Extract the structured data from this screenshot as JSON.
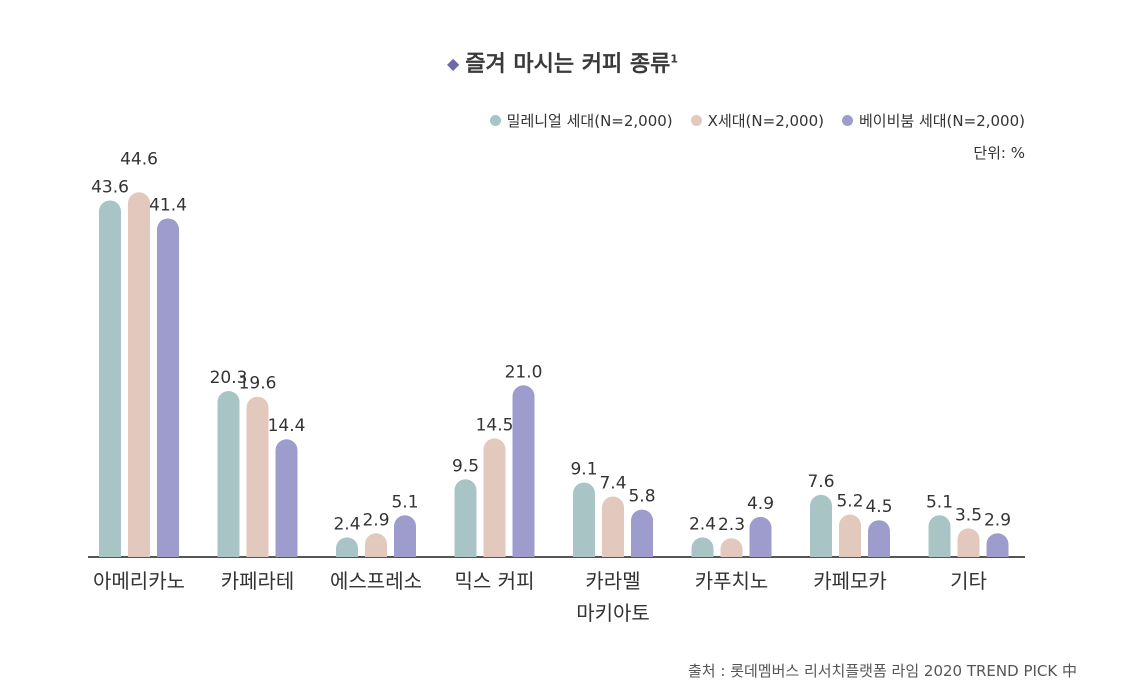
{
  "title": "즐겨 마시는 커피 종류",
  "title_note": "1",
  "unit": "단위: %",
  "source": "출처 : 롯데멤버스 리서치플랫폼 라임 2020 TREND PICK 中",
  "colors": {
    "millennial": "#a9c4c4",
    "genx": "#e3c8bd",
    "boomer": "#9d9ccc",
    "axis": "#555555"
  },
  "chart_data": {
    "type": "bar",
    "title": "즐겨 마시는 커피 종류",
    "categories": [
      "아메리카노",
      "카페라테",
      "에스프레소",
      "믹스 커피",
      "카라멜\n마키아토",
      "카푸치노",
      "카페모카",
      "기타"
    ],
    "series": [
      {
        "name": "밀레니얼 세대(N=2,000)",
        "values": [
          43.6,
          20.3,
          2.4,
          9.5,
          9.1,
          2.4,
          7.6,
          5.1
        ]
      },
      {
        "name": "X세대(N=2,000)",
        "values": [
          44.6,
          19.6,
          2.9,
          14.5,
          7.4,
          2.3,
          5.2,
          3.5
        ]
      },
      {
        "name": "베이비붐 세대(N=2,000)",
        "values": [
          41.4,
          14.4,
          5.1,
          21.0,
          5.8,
          4.9,
          4.5,
          2.9
        ]
      }
    ],
    "ylabel": "",
    "xlabel": "",
    "ylim": [
      0,
      45
    ],
    "grid": false,
    "legend": "top-right"
  }
}
